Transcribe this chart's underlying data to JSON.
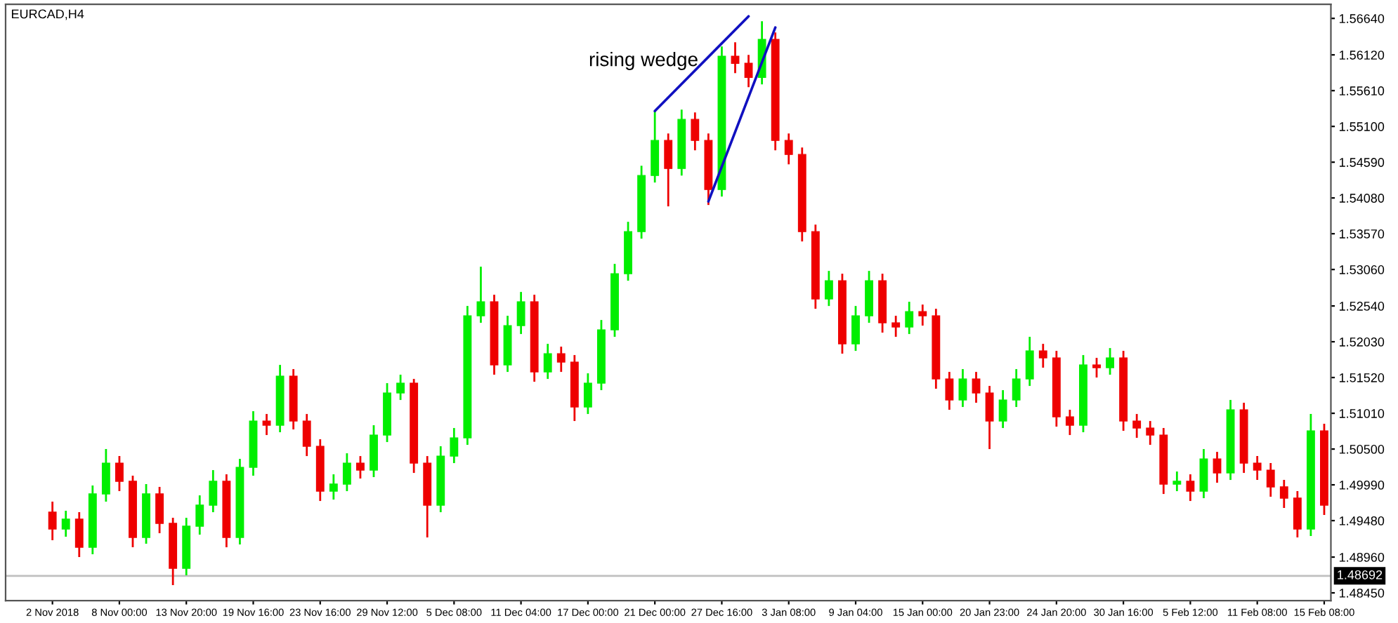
{
  "chart_data": {
    "type": "candlestick",
    "title": "EURCAD,H4",
    "categories": [
      "2 Nov 2018",
      null,
      null,
      null,
      null,
      "8 Nov 00:00",
      null,
      null,
      null,
      null,
      "13 Nov 20:00",
      null,
      null,
      null,
      null,
      "19 Nov 16:00",
      null,
      null,
      null,
      null,
      "23 Nov 16:00",
      null,
      null,
      null,
      null,
      "29 Nov 12:00",
      null,
      null,
      null,
      null,
      "5 Dec 08:00",
      null,
      null,
      null,
      null,
      "11 Dec 04:00",
      null,
      null,
      null,
      null,
      "17 Dec 00:00",
      null,
      null,
      null,
      null,
      "21 Dec 00:00",
      null,
      null,
      null,
      null,
      "27 Dec 16:00",
      null,
      null,
      null,
      null,
      "3 Jan 08:00",
      null,
      null,
      null,
      null,
      "9 Jan 04:00",
      null,
      null,
      null,
      null,
      "15 Jan 00:00",
      null,
      null,
      null,
      null,
      "20 Jan 23:00",
      null,
      null,
      null,
      null,
      "24 Jan 20:00",
      null,
      null,
      null,
      null,
      "30 Jan 16:00",
      null,
      null,
      null,
      null,
      "5 Feb 12:00",
      null,
      null,
      null,
      null,
      "11 Feb 08:00",
      null,
      null,
      null,
      null,
      "15 Feb 08:00"
    ],
    "ohlc": [
      [
        1.496,
        1.4975,
        1.492,
        1.4936
      ],
      [
        1.4936,
        1.4962,
        1.4925,
        1.495
      ],
      [
        1.495,
        1.496,
        1.4896,
        1.491
      ],
      [
        1.491,
        1.4998,
        1.49,
        1.4986
      ],
      [
        1.4986,
        1.505,
        1.4975,
        1.503
      ],
      [
        1.503,
        1.504,
        1.499,
        1.5004
      ],
      [
        1.5004,
        1.5012,
        1.491,
        1.4924
      ],
      [
        1.4924,
        1.5,
        1.4915,
        1.4986
      ],
      [
        1.4986,
        1.4996,
        1.493,
        1.4944
      ],
      [
        1.4944,
        1.4952,
        1.4856,
        1.488
      ],
      [
        1.488,
        1.4952,
        1.487,
        1.494
      ],
      [
        1.494,
        1.4984,
        1.4928,
        1.497
      ],
      [
        1.497,
        1.502,
        1.496,
        1.5004
      ],
      [
        1.5004,
        1.5014,
        1.491,
        1.4924
      ],
      [
        1.4924,
        1.5036,
        1.4914,
        1.5024
      ],
      [
        1.5024,
        1.5104,
        1.5012,
        1.509
      ],
      [
        1.509,
        1.51,
        1.507,
        1.5084
      ],
      [
        1.5084,
        1.517,
        1.5074,
        1.5154
      ],
      [
        1.5154,
        1.5164,
        1.5078,
        1.509
      ],
      [
        1.509,
        1.51,
        1.504,
        1.5054
      ],
      [
        1.5054,
        1.5064,
        1.4976,
        1.499
      ],
      [
        1.499,
        1.5014,
        1.4978,
        1.5
      ],
      [
        1.5,
        1.5044,
        1.499,
        1.503
      ],
      [
        1.503,
        1.504,
        1.5008,
        1.502
      ],
      [
        1.502,
        1.5084,
        1.501,
        1.507
      ],
      [
        1.507,
        1.5144,
        1.506,
        1.513
      ],
      [
        1.513,
        1.5156,
        1.512,
        1.5144
      ],
      [
        1.5144,
        1.515,
        1.5016,
        1.503
      ],
      [
        1.503,
        1.504,
        1.4924,
        1.497
      ],
      [
        1.497,
        1.5054,
        1.496,
        1.504
      ],
      [
        1.504,
        1.508,
        1.503,
        1.5066
      ],
      [
        1.5066,
        1.5254,
        1.5056,
        1.524
      ],
      [
        1.524,
        1.531,
        1.523,
        1.526
      ],
      [
        1.526,
        1.527,
        1.5156,
        1.517
      ],
      [
        1.517,
        1.524,
        1.516,
        1.5226
      ],
      [
        1.5226,
        1.5274,
        1.5214,
        1.526
      ],
      [
        1.526,
        1.527,
        1.5146,
        1.516
      ],
      [
        1.516,
        1.52,
        1.515,
        1.5186
      ],
      [
        1.5186,
        1.5196,
        1.516,
        1.5174
      ],
      [
        1.5174,
        1.5184,
        1.509,
        1.511
      ],
      [
        1.511,
        1.5158,
        1.51,
        1.5144
      ],
      [
        1.5144,
        1.5234,
        1.5134,
        1.522
      ],
      [
        1.522,
        1.5314,
        1.521,
        1.53
      ],
      [
        1.53,
        1.5374,
        1.529,
        1.536
      ],
      [
        1.536,
        1.5454,
        1.535,
        1.544
      ],
      [
        1.544,
        1.5532,
        1.543,
        1.549
      ],
      [
        1.549,
        1.55,
        1.5396,
        1.545
      ],
      [
        1.545,
        1.5534,
        1.544,
        1.552
      ],
      [
        1.552,
        1.553,
        1.5476,
        1.549
      ],
      [
        1.549,
        1.55,
        1.5398,
        1.542
      ],
      [
        1.542,
        1.5624,
        1.541,
        1.561
      ],
      [
        1.561,
        1.563,
        1.5586,
        1.56
      ],
      [
        1.56,
        1.5612,
        1.5566,
        1.558
      ],
      [
        1.558,
        1.566,
        1.557,
        1.5634
      ],
      [
        1.5634,
        1.5644,
        1.5476,
        1.549
      ],
      [
        1.549,
        1.55,
        1.5456,
        1.547
      ],
      [
        1.547,
        1.548,
        1.5346,
        1.536
      ],
      [
        1.536,
        1.537,
        1.525,
        1.5264
      ],
      [
        1.5264,
        1.5304,
        1.5254,
        1.529
      ],
      [
        1.529,
        1.53,
        1.5186,
        1.52
      ],
      [
        1.52,
        1.5254,
        1.519,
        1.524
      ],
      [
        1.524,
        1.5304,
        1.523,
        1.529
      ],
      [
        1.529,
        1.53,
        1.5216,
        1.523
      ],
      [
        1.523,
        1.524,
        1.521,
        1.5224
      ],
      [
        1.5224,
        1.526,
        1.5214,
        1.5246
      ],
      [
        1.5246,
        1.5256,
        1.5226,
        1.524
      ],
      [
        1.524,
        1.525,
        1.5136,
        1.515
      ],
      [
        1.515,
        1.516,
        1.5106,
        1.512
      ],
      [
        1.512,
        1.5164,
        1.511,
        1.515
      ],
      [
        1.515,
        1.516,
        1.5116,
        1.513
      ],
      [
        1.513,
        1.514,
        1.505,
        1.509
      ],
      [
        1.509,
        1.5134,
        1.508,
        1.512
      ],
      [
        1.512,
        1.5164,
        1.511,
        1.515
      ],
      [
        1.515,
        1.521,
        1.514,
        1.519
      ],
      [
        1.519,
        1.52,
        1.5166,
        1.518
      ],
      [
        1.518,
        1.519,
        1.5082,
        1.5096
      ],
      [
        1.5096,
        1.5106,
        1.507,
        1.5084
      ],
      [
        1.5084,
        1.5184,
        1.5074,
        1.517
      ],
      [
        1.517,
        1.518,
        1.5152,
        1.5166
      ],
      [
        1.5166,
        1.5194,
        1.5156,
        1.518
      ],
      [
        1.518,
        1.519,
        1.5076,
        1.509
      ],
      [
        1.509,
        1.51,
        1.5066,
        1.508
      ],
      [
        1.508,
        1.509,
        1.5056,
        1.507
      ],
      [
        1.507,
        1.508,
        1.4986,
        1.5
      ],
      [
        1.5,
        1.5018,
        1.499,
        1.5004
      ],
      [
        1.5004,
        1.5014,
        1.4976,
        1.499
      ],
      [
        1.499,
        1.505,
        1.498,
        1.5036
      ],
      [
        1.5036,
        1.5046,
        1.5002,
        1.5016
      ],
      [
        1.5016,
        1.512,
        1.5006,
        1.5106
      ],
      [
        1.5106,
        1.5116,
        1.5016,
        1.503
      ],
      [
        1.503,
        1.504,
        1.5006,
        1.502
      ],
      [
        1.502,
        1.503,
        1.4982,
        1.4996
      ],
      [
        1.4996,
        1.5006,
        1.4966,
        1.498
      ],
      [
        1.498,
        1.499,
        1.4924,
        1.4936
      ],
      [
        1.4936,
        1.51,
        1.4926,
        1.5076
      ],
      [
        1.5076,
        1.5086,
        1.4956,
        1.497
      ]
    ],
    "colors": [
      "#ee0000",
      "#00ee00",
      "#ee0000",
      "#00ee00",
      "#00ee00",
      "#ee0000",
      "#ee0000",
      "#00ee00",
      "#ee0000",
      "#ee0000",
      "#00ee00",
      "#00ee00",
      "#00ee00",
      "#ee0000",
      "#00ee00",
      "#00ee00",
      "#ee0000",
      "#00ee00",
      "#ee0000",
      "#ee0000",
      "#ee0000",
      "#00ee00",
      "#00ee00",
      "#ee0000",
      "#00ee00",
      "#00ee00",
      "#00ee00",
      "#ee0000",
      "#ee0000",
      "#00ee00",
      "#00ee00",
      "#00ee00",
      "#00ee00",
      "#ee0000",
      "#00ee00",
      "#00ee00",
      "#ee0000",
      "#00ee00",
      "#ee0000",
      "#ee0000",
      "#00ee00",
      "#00ee00",
      "#00ee00",
      "#00ee00",
      "#00ee00",
      "#00ee00",
      "#ee0000",
      "#00ee00",
      "#ee0000",
      "#ee0000",
      "#00ee00",
      "#ee0000",
      "#ee0000",
      "#00ee00",
      "#ee0000",
      "#ee0000",
      "#ee0000",
      "#ee0000",
      "#00ee00",
      "#ee0000",
      "#00ee00",
      "#00ee00",
      "#ee0000",
      "#ee0000",
      "#00ee00",
      "#ee0000",
      "#ee0000",
      "#ee0000",
      "#00ee00",
      "#ee0000",
      "#ee0000",
      "#00ee00",
      "#00ee00",
      "#00ee00",
      "#ee0000",
      "#ee0000",
      "#ee0000",
      "#00ee00",
      "#ee0000",
      "#00ee00",
      "#ee0000",
      "#ee0000",
      "#ee0000",
      "#ee0000",
      "#00ee00",
      "#ee0000",
      "#00ee00",
      "#ee0000",
      "#00ee00",
      "#ee0000",
      "#ee0000",
      "#ee0000",
      "#ee0000",
      "#ee0000",
      "#00ee00",
      "#ee0000"
    ],
    "series": [
      {
        "type": "line",
        "color": "#1010c0",
        "values": [
          null,
          null,
          null,
          null,
          null,
          null,
          null,
          null,
          null,
          null,
          null,
          null,
          null,
          null,
          null,
          null,
          null,
          null,
          null,
          null,
          null,
          null,
          null,
          null,
          null,
          null,
          null,
          null,
          null,
          null,
          null,
          null,
          null,
          null,
          null,
          null,
          null,
          null,
          null,
          null,
          null,
          null,
          null,
          null,
          null,
          1.5532,
          null,
          null,
          null,
          null,
          null,
          null,
          1.5667,
          null,
          null,
          null,
          null,
          null,
          null,
          null,
          null,
          null,
          null,
          null,
          null,
          null,
          null,
          null,
          null,
          null,
          null,
          null,
          null,
          null,
          null,
          null,
          null,
          null,
          null,
          null,
          null,
          null,
          null,
          null,
          null,
          null,
          null,
          null,
          null,
          null,
          null,
          null,
          null,
          null,
          null,
          null
        ]
      },
      {
        "type": "line",
        "color": "#1010c0",
        "values": [
          null,
          null,
          null,
          null,
          null,
          null,
          null,
          null,
          null,
          null,
          null,
          null,
          null,
          null,
          null,
          null,
          null,
          null,
          null,
          null,
          null,
          null,
          null,
          null,
          null,
          null,
          null,
          null,
          null,
          null,
          null,
          null,
          null,
          null,
          null,
          null,
          null,
          null,
          null,
          null,
          null,
          null,
          null,
          null,
          null,
          null,
          null,
          null,
          null,
          1.5403,
          null,
          null,
          null,
          null,
          1.5651,
          null,
          null,
          null,
          null,
          null,
          null,
          null,
          null,
          null,
          null,
          null,
          null,
          null,
          null,
          null,
          null,
          null,
          null,
          null,
          null,
          null,
          null,
          null,
          null,
          null,
          null,
          null,
          null,
          null,
          null,
          null,
          null,
          null,
          null,
          null,
          null,
          null,
          null,
          null,
          null,
          null
        ]
      }
    ],
    "annotations": [
      "rising wedge"
    ],
    "ref_lines": [
      {
        "axis": "y",
        "value": 1.48692,
        "label": "1.48692",
        "color": "#c0c0c0"
      }
    ],
    "ylim": [
      1.4834,
      1.5684
    ],
    "yticks": [
      {
        "value": 1.5664,
        "label": "1.56640"
      },
      {
        "value": 1.5612,
        "label": "1.56120"
      },
      {
        "value": 1.5561,
        "label": "1.55610"
      },
      {
        "value": 1.551,
        "label": "1.55100"
      },
      {
        "value": 1.5459,
        "label": "1.54590"
      },
      {
        "value": 1.5408,
        "label": "1.54080"
      },
      {
        "value": 1.5357,
        "label": "1.53570"
      },
      {
        "value": 1.5306,
        "label": "1.53060"
      },
      {
        "value": 1.5254,
        "label": "1.52540"
      },
      {
        "value": 1.5203,
        "label": "1.52030"
      },
      {
        "value": 1.5152,
        "label": "1.51520"
      },
      {
        "value": 1.5101,
        "label": "1.51010"
      },
      {
        "value": 1.505,
        "label": "1.50500"
      },
      {
        "value": 1.4999,
        "label": "1.49990"
      },
      {
        "value": 1.4948,
        "label": "1.49480"
      },
      {
        "value": 1.4896,
        "label": "1.48960"
      },
      {
        "value": 1.4845,
        "label": "1.48450"
      }
    ]
  }
}
